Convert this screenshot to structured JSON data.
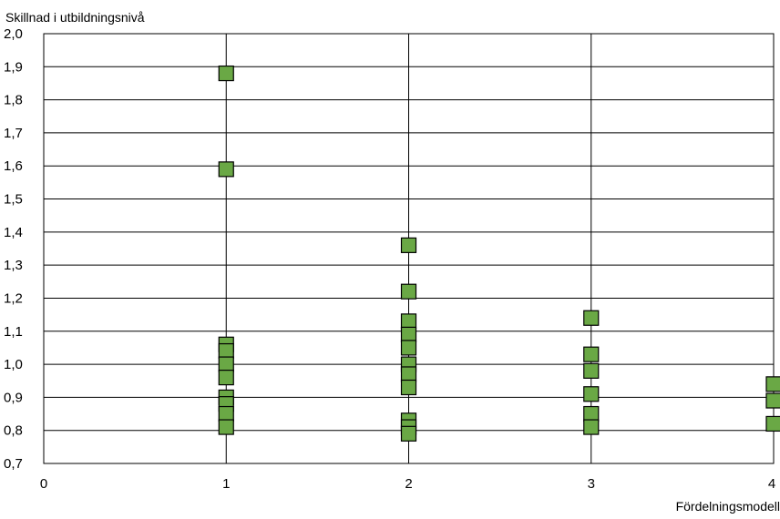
{
  "chart_data": {
    "type": "scatter",
    "title": "",
    "ylabel": "Skillnad i utbildningsnivå",
    "xlabel": "Fördelningsmodell",
    "xlim": [
      0,
      4
    ],
    "ylim": [
      0.7,
      2.0
    ],
    "x_ticks": [
      "0",
      "1",
      "2",
      "3",
      "4"
    ],
    "y_ticks": [
      "0,7",
      "0,8",
      "0,9",
      "1,0",
      "1,1",
      "1,2",
      "1,3",
      "1,4",
      "1,5",
      "1,6",
      "1,7",
      "1,8",
      "1,9",
      "2,0"
    ],
    "grid": true,
    "marker": "square",
    "marker_color": "#6aa845",
    "series": [
      {
        "points": [
          {
            "x": 1,
            "y": 1.88
          },
          {
            "x": 1,
            "y": 1.59
          },
          {
            "x": 1,
            "y": 1.06
          },
          {
            "x": 1,
            "y": 1.04
          },
          {
            "x": 1,
            "y": 1.0
          },
          {
            "x": 1,
            "y": 0.96
          },
          {
            "x": 1,
            "y": 0.9
          },
          {
            "x": 1,
            "y": 0.88
          },
          {
            "x": 1,
            "y": 0.85
          },
          {
            "x": 1,
            "y": 0.81
          },
          {
            "x": 2,
            "y": 1.36
          },
          {
            "x": 2,
            "y": 1.22
          },
          {
            "x": 2,
            "y": 1.13
          },
          {
            "x": 2,
            "y": 1.09
          },
          {
            "x": 2,
            "y": 1.05
          },
          {
            "x": 2,
            "y": 1.0
          },
          {
            "x": 2,
            "y": 0.97
          },
          {
            "x": 2,
            "y": 0.93
          },
          {
            "x": 2,
            "y": 0.83
          },
          {
            "x": 2,
            "y": 0.81
          },
          {
            "x": 2,
            "y": 0.79
          },
          {
            "x": 3,
            "y": 1.14
          },
          {
            "x": 3,
            "y": 1.03
          },
          {
            "x": 3,
            "y": 0.98
          },
          {
            "x": 3,
            "y": 0.91
          },
          {
            "x": 3,
            "y": 0.85
          },
          {
            "x": 3,
            "y": 0.81
          },
          {
            "x": 4,
            "y": 0.94
          },
          {
            "x": 4,
            "y": 0.89
          },
          {
            "x": 4,
            "y": 0.82
          }
        ]
      }
    ]
  }
}
